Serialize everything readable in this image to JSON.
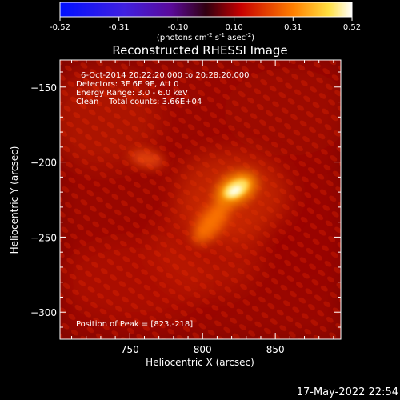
{
  "colorbar": {
    "ticks": [
      "-0.52",
      "-0.31",
      "-0.10",
      "0.10",
      "0.31",
      "0.52"
    ],
    "unit_text": "(photons cm",
    "unit_sup1": "-2",
    "unit_mid1": " s",
    "unit_sup2": "-1",
    "unit_mid2": " asec",
    "unit_sup3": "-2",
    "unit_end": ")"
  },
  "chart_data": {
    "type": "heatmap",
    "title": "Reconstructed RHESSI Image",
    "xlabel": "Heliocentric X (arcsec)",
    "ylabel": "Heliocentric Y (arcsec)",
    "xlim": [
      702,
      895
    ],
    "ylim": [
      -318,
      -132
    ],
    "x_ticks": [
      750,
      800,
      850
    ],
    "y_ticks": [
      -150,
      -200,
      -250,
      -300
    ],
    "x_tick_labels": [
      "750",
      "800",
      "850"
    ],
    "y_tick_labels": [
      "−150",
      "−200",
      "−250",
      "−300"
    ],
    "colorbar_range": [
      -0.52,
      0.52
    ],
    "colormap": "red-temperature",
    "sources": [
      {
        "x": 823,
        "y": -218,
        "amplitude": 0.52,
        "note": "peak"
      },
      {
        "x": 806,
        "y": -240,
        "amplitude": 0.33
      },
      {
        "x": 762,
        "y": -198,
        "amplitude": 0.22
      }
    ],
    "peak": [
      823,
      -218
    ]
  },
  "annotations": {
    "time_range": "6-Oct-2014 20:22:20.000 to 20:28:20.000",
    "detectors": "Detectors: 3F 6F 9F, Att 0",
    "energy": "Energy Range: 3.0 - 6.0 keV",
    "clean": "Clean    Total counts: 3.66E+04",
    "peak_text": "Position of Peak = [823,-218]"
  },
  "footer": {
    "timestamp": "17-May-2022 22:54"
  },
  "colors": {
    "background": "#000000",
    "text": "#ffffff"
  }
}
